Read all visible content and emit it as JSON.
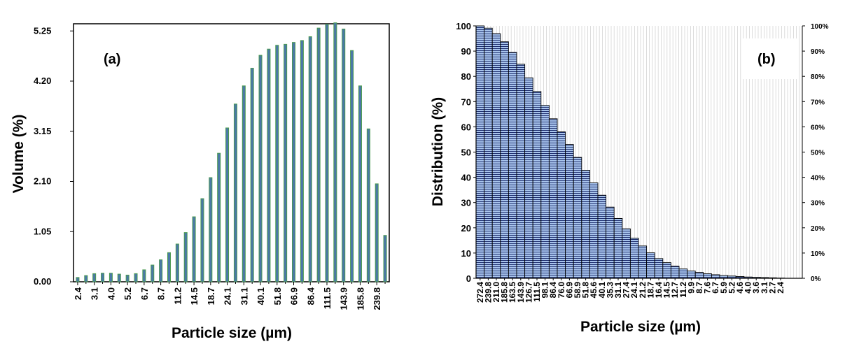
{
  "chart_data": [
    {
      "type": "bar",
      "panel_label": "(a)",
      "xlabel": "Particle size (µm)",
      "ylabel": "Volume (%)",
      "ylim": [
        0,
        5.4
      ],
      "yticks": [
        "0.00",
        "1.05",
        "2.10",
        "3.15",
        "4.20",
        "5.25"
      ],
      "xticks_shown": [
        "2.4",
        "3.1",
        "4.0",
        "5.2",
        "6.7",
        "8.7",
        "11.2",
        "14.5",
        "18.7",
        "24.1",
        "31.1",
        "40.1",
        "51.8",
        "66.9",
        "86.4",
        "111.5",
        "143.9",
        "185.8",
        "239.8"
      ],
      "grid": false,
      "bar_colors": {
        "face": "#4a78a8",
        "edge": "#4a9a50"
      },
      "values": [
        0.09,
        0.13,
        0.17,
        0.18,
        0.18,
        0.16,
        0.14,
        0.17,
        0.25,
        0.35,
        0.46,
        0.61,
        0.79,
        1.03,
        1.36,
        1.74,
        2.18,
        2.69,
        3.22,
        3.72,
        4.1,
        4.47,
        4.74,
        4.87,
        4.95,
        4.97,
        5.01,
        5.05,
        5.13,
        5.31,
        5.39,
        5.42,
        5.29,
        4.84,
        4.1,
        3.2,
        2.05,
        0.97
      ]
    },
    {
      "type": "bar",
      "panel_label": "(b)",
      "xlabel": "Particle size (µm)",
      "ylabel": "Distribution (%)",
      "ylim": [
        0,
        100
      ],
      "yticks": [
        "0",
        "10",
        "20",
        "30",
        "40",
        "50",
        "60",
        "70",
        "80",
        "90",
        "100"
      ],
      "yticks_right": [
        "0%",
        "10%",
        "20%",
        "30%",
        "40%",
        "50%",
        "60%",
        "70%",
        "80%",
        "90%",
        "100%"
      ],
      "grid": true,
      "bar_colors": {
        "face": "#a8c4ec",
        "hatch": "#1f2f6f",
        "edge": "#000000"
      },
      "categories": [
        "272.4",
        "239.8",
        "211.0",
        "185.8",
        "163.5",
        "143.9",
        "126.7",
        "111.5",
        "98.1",
        "86.4",
        "76.0",
        "66.9",
        "58.9",
        "51.8",
        "45.6",
        "40.1",
        "35.3",
        "31.1",
        "27.4",
        "24.1",
        "21.2",
        "18.7",
        "16.4",
        "14.5",
        "12.7",
        "11.2",
        "9.9",
        "8.7",
        "7.6",
        "6.7",
        "5.9",
        "5.2",
        "4.6",
        "4.0",
        "3.6",
        "3.1",
        "2.7",
        "2.4"
      ],
      "values": [
        100,
        99.1,
        96.9,
        93.7,
        89.5,
        84.8,
        79.4,
        74.0,
        68.5,
        63.2,
        58.0,
        53.0,
        47.9,
        42.8,
        37.8,
        32.9,
        28.2,
        23.7,
        19.6,
        15.9,
        12.8,
        10.1,
        7.8,
        6.2,
        4.8,
        3.7,
        2.9,
        2.3,
        1.8,
        1.4,
        1.1,
        0.9,
        0.7,
        0.5,
        0.4,
        0.3,
        0.2,
        0.1
      ]
    }
  ]
}
